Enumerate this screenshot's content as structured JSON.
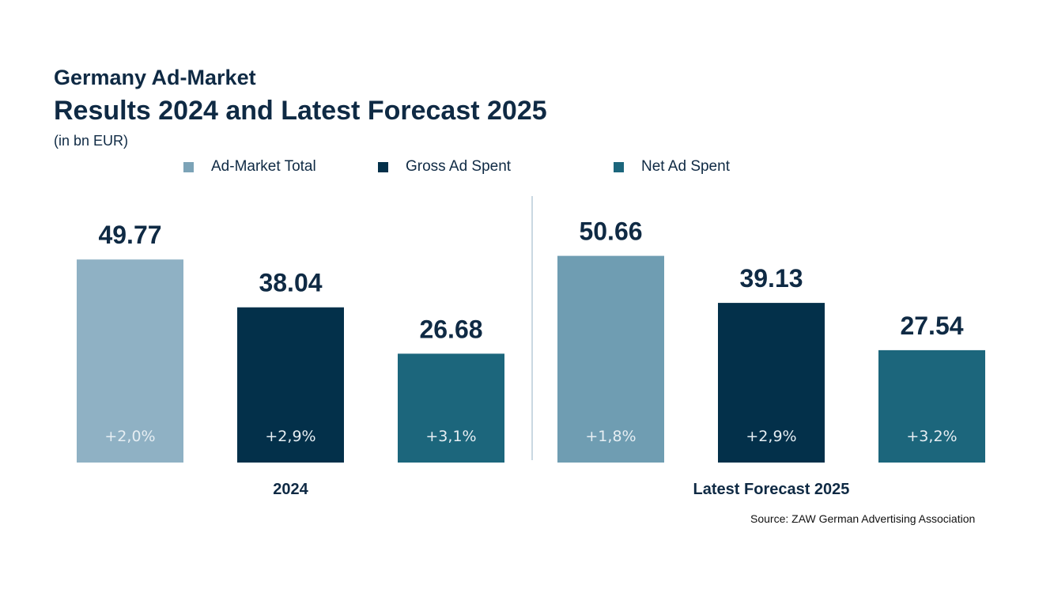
{
  "chart_data": {
    "type": "bar",
    "title": "Germany Ad-Market",
    "subtitle": "Results 2024 and Latest Forecast 2025",
    "unit_note": "(in bn EUR)",
    "categories": [
      "2024",
      "Latest Forecast 2025"
    ],
    "series": [
      {
        "name": "Ad-Market Total",
        "values": [
          49.77,
          50.66
        ],
        "growth": [
          "+2,0%",
          "+1,8%"
        ],
        "colors": [
          "#8fb1c4",
          "#6f9db2"
        ]
      },
      {
        "name": "Gross Ad Spent",
        "values": [
          38.04,
          39.13
        ],
        "growth": [
          "+2,9%",
          "+2,9%"
        ],
        "colors": [
          "#03304a",
          "#03304a"
        ]
      },
      {
        "name": "Net Ad Spent",
        "values": [
          26.68,
          27.54
        ],
        "growth": [
          "+3,1%",
          "+3,2%"
        ],
        "colors": [
          "#1c667c",
          "#1c667c"
        ]
      }
    ],
    "value_labels": [
      [
        "49.77",
        "50.66"
      ],
      [
        "38.04",
        "39.13"
      ],
      [
        "26.68",
        "27.54"
      ]
    ],
    "legend_colors": [
      "#7ca3b7",
      "#03304a",
      "#1c667c"
    ],
    "legend_placement": "top",
    "ylim": [
      0,
      55
    ],
    "grid": false
  },
  "source": "Source: ZAW German Advertising Association"
}
